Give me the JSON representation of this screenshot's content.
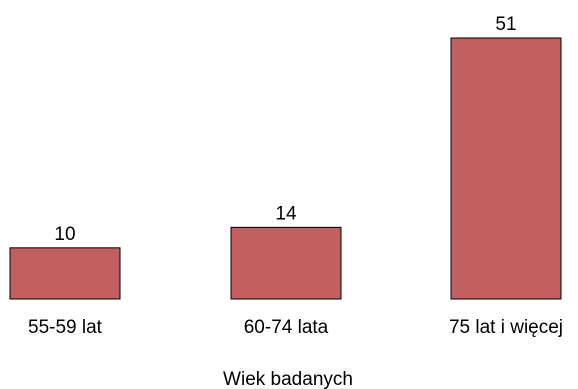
{
  "chart_data": {
    "type": "bar",
    "categories": [
      "55-59 lat",
      "60-74 lata",
      "75 lat i więcej"
    ],
    "values": [
      10,
      14,
      51
    ],
    "data_labels": [
      "10",
      "14",
      "51"
    ],
    "title": "",
    "xlabel": "Wiek badanych",
    "ylabel": "",
    "ylim": [
      0,
      51
    ],
    "grid": false,
    "legend": "none",
    "colors": {
      "bar": "#C06060",
      "bar_stroke": "#000000",
      "text": "#000000",
      "background": "#FFFFFF"
    }
  }
}
